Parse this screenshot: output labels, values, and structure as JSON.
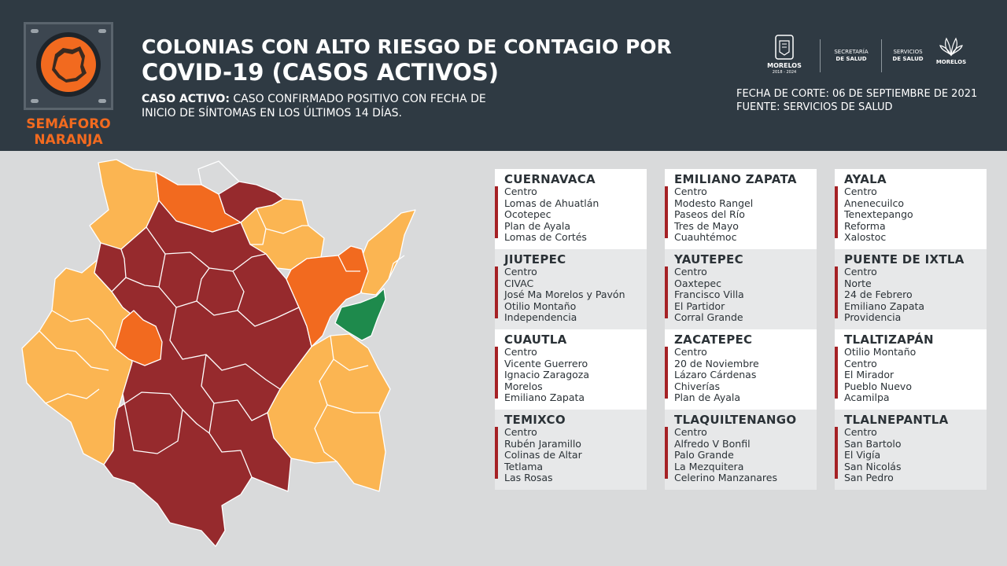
{
  "header": {
    "title_line1": "COLONIAS CON ALTO RIESGO DE CONTAGIO POR",
    "title_line2": "COVID-19 (CASOS ACTIVOS)",
    "definition_label": "CASO ACTIVO:",
    "definition_text1": " CASO CONFIRMADO POSITIVO CON FECHA DE",
    "definition_text2": "INICIO DE SÍNTOMAS EN LOS ÚLTIMOS 14 DÍAS.",
    "fecha_corte": "FECHA DE CORTE: 06 DE SEPTIEMBRE DE 2021",
    "fuente": "FUENTE: SERVICIOS DE SALUD"
  },
  "semaforo": {
    "line1": "SEMÁFORO",
    "line2": "NARANJA",
    "color": "#f26a1f"
  },
  "logos": {
    "morelos": "MORELOS",
    "morelos_years": "2018 - 2024",
    "secretaria_1": "SECRETARÍA",
    "secretaria_2": "DE SALUD",
    "servicios_1": "SERVICIOS",
    "servicios_2": "DE SALUD",
    "morelos2": "MORELOS"
  },
  "map_colors": {
    "dark_red": "#962a2d",
    "orange": "#f26a1f",
    "light_orange": "#fbb552",
    "green": "#1e8a4c",
    "border": "#ffffff"
  },
  "municipalities": [
    {
      "name": "CUERNAVACA",
      "colonias": [
        "Centro",
        "Lomas de Ahuatlán",
        "Ocotepec",
        "Plan de Ayala",
        "Lomas de Cortés"
      ]
    },
    {
      "name": "JIUTEPEC",
      "colonias": [
        "Centro",
        "CIVAC",
        "José Ma Morelos y Pavón",
        "Otilio Montaño",
        "Independencia"
      ]
    },
    {
      "name": "CUAUTLA",
      "colonias": [
        "Centro",
        "Vicente Guerrero",
        "Ignacio Zaragoza",
        "Morelos",
        "Emiliano Zapata"
      ]
    },
    {
      "name": "TEMIXCO",
      "colonias": [
        "Centro",
        "Rubén Jaramillo",
        "Colinas de Altar",
        "Tetlama",
        "Las Rosas"
      ]
    },
    {
      "name": "EMILIANO ZAPATA",
      "colonias": [
        "Centro",
        "Modesto Rangel",
        "Paseos del Río",
        "Tres de Mayo",
        "Cuauhtémoc"
      ]
    },
    {
      "name": "YAUTEPEC",
      "colonias": [
        "Centro",
        "Oaxtepec",
        "Francisco Villa",
        "El Partidor",
        "Corral Grande"
      ]
    },
    {
      "name": "ZACATEPEC",
      "colonias": [
        "Centro",
        "20 de Noviembre",
        "Lázaro Cárdenas",
        "Chiverías",
        "Plan de Ayala"
      ]
    },
    {
      "name": "TLAQUILTENANGO",
      "colonias": [
        "Centro",
        "Alfredo V Bonfil",
        "Palo Grande",
        "La Mezquitera",
        "Celerino Manzanares"
      ]
    },
    {
      "name": "AYALA",
      "colonias": [
        "Centro",
        "Anenecuilco",
        "Tenextepango",
        "Reforma",
        "Xalostoc"
      ]
    },
    {
      "name": "PUENTE DE IXTLA",
      "colonias": [
        "Centro",
        "Norte",
        "24 de Febrero",
        "Emiliano Zapata",
        "Providencia"
      ]
    },
    {
      "name": "TLALTIZAPÁN",
      "colonias": [
        "Otilio Montaño",
        "Centro",
        "El Mirador",
        "Pueblo Nuevo",
        "Acamilpa"
      ]
    },
    {
      "name": "TLALNEPANTLA",
      "colonias": [
        "Centro",
        "San Bartolo",
        "El Vigía",
        "San Nicolás",
        "San Pedro"
      ]
    }
  ]
}
